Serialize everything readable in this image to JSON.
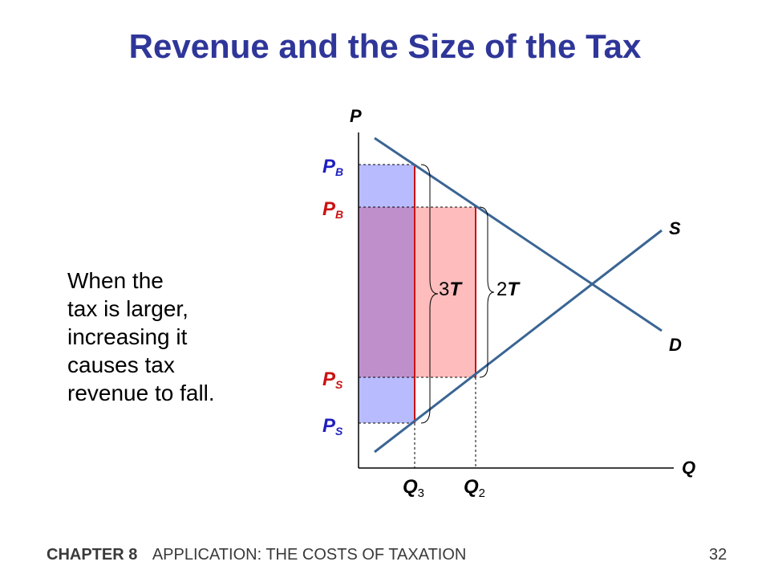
{
  "slide": {
    "title": "Revenue and the Size of the Tax",
    "footer_chapter": "CHAPTER 8",
    "footer_title": "APPLICATION:  THE COSTS OF TAXATION",
    "page_number": "32"
  },
  "explanation": {
    "lines": [
      "When the",
      "tax is larger,",
      "increasing it",
      "causes tax",
      "revenue to fall."
    ]
  },
  "diagram": {
    "axis_y_label": "P",
    "axis_x_label": "Q",
    "supply_label": "S",
    "demand_label": "D",
    "price_labels": [
      {
        "main": "P",
        "sub": "B",
        "color": "#1f1fbf"
      },
      {
        "main": "P",
        "sub": "B",
        "color": "#cc1111"
      },
      {
        "main": "P",
        "sub": "S",
        "color": "#cc1111"
      },
      {
        "main": "P",
        "sub": "S",
        "color": "#1f1fbf"
      }
    ],
    "quantity_labels": [
      {
        "main": "Q",
        "sub": "3"
      },
      {
        "main": "Q",
        "sub": "2"
      }
    ],
    "tax_labels": [
      {
        "num": "3",
        "sym": "T"
      },
      {
        "num": "2",
        "sym": "T"
      }
    ],
    "colors": {
      "curve": "#3a6594",
      "blue_area": "#b8bcff",
      "red_area": "#ffbcbc",
      "overlap_area": "#bf8fcc",
      "red_line": "#cc1111"
    }
  }
}
